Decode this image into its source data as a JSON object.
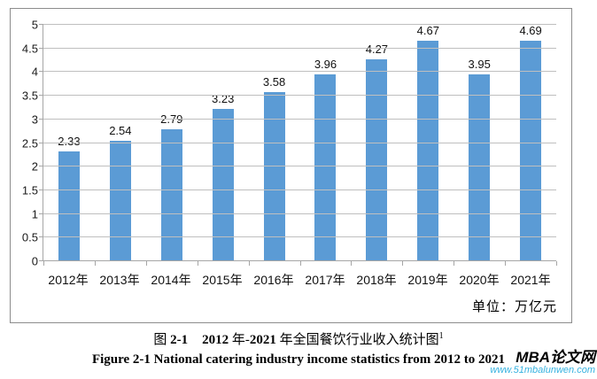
{
  "chart_data": {
    "type": "bar",
    "categories": [
      "2012年",
      "2013年",
      "2014年",
      "2015年",
      "2016年",
      "2017年",
      "2018年",
      "2019年",
      "2020年",
      "2021年"
    ],
    "values": [
      2.33,
      2.54,
      2.79,
      3.23,
      3.58,
      3.96,
      4.27,
      4.67,
      3.95,
      4.69
    ],
    "value_labels": [
      "2.33",
      "2.54",
      "2.79",
      "3.23",
      "3.58",
      "3.96",
      "4.27",
      "4.67",
      "3.95",
      "4.69"
    ],
    "title": "",
    "xlabel": "",
    "ylabel": "",
    "ylim": [
      0,
      5
    ],
    "ytick_step": 0.5,
    "ytick_labels": [
      "0",
      "0.5",
      "1",
      "1.5",
      "2",
      "2.5",
      "3",
      "3.5",
      "4",
      "4.5",
      "5"
    ],
    "grid": true,
    "legend": "none",
    "bar_color": "#5b9bd5",
    "gridline_color": "#bfbfbf",
    "axis_color": "#a6a6a6",
    "unit_label": "单位：万亿元"
  },
  "captions": {
    "zh": {
      "p0": "图 ",
      "p1": "2-1",
      "p2": "2012",
      "p3": " 年-",
      "p4": "2021",
      "p5": " 年全国餐饮行业收入统计图",
      "footnote": "1"
    },
    "en": "Figure 2-1 National catering industry income statistics from 2012 to 2021"
  },
  "watermark": {
    "brand": "MBA论文网",
    "url": "www.51mbalunwen.com",
    "url_color": "#35b2e0"
  }
}
